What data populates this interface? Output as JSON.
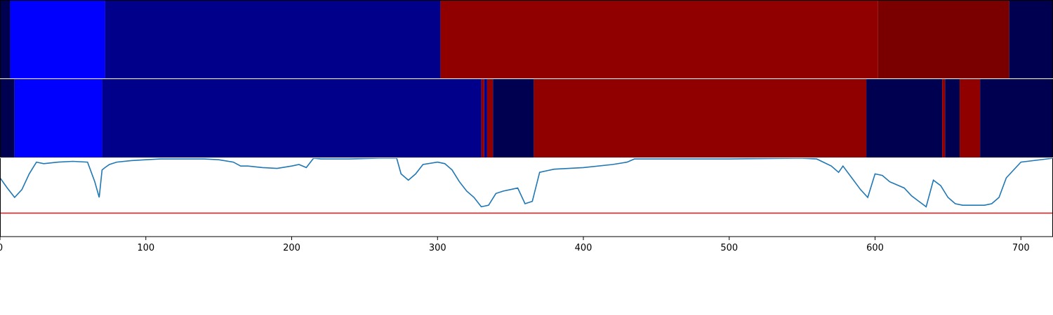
{
  "chart_data": {
    "type": "heatmap",
    "title": "",
    "xlabel": "",
    "ylabel": "",
    "xlim": [
      0,
      722
    ],
    "x_ticks": [
      0,
      100,
      200,
      300,
      400,
      500,
      600,
      700
    ],
    "x_tick_labels": [
      "0",
      "100",
      "200",
      "300",
      "400",
      "500",
      "600",
      "700"
    ],
    "grid": false,
    "legend": "none",
    "colors": {
      "bright_blue": "#0000ff",
      "mid_blue": "#00008b",
      "dark_navy": "#000050",
      "red": "#900000",
      "dark_red": "#7a0000",
      "line": "#1f77b4",
      "threshold": "#d62728"
    },
    "rows": [
      {
        "segments": [
          {
            "start": 0,
            "end": 7,
            "color": "dark_navy"
          },
          {
            "start": 7,
            "end": 72,
            "color": "bright_blue"
          },
          {
            "start": 72,
            "end": 302,
            "color": "mid_blue"
          },
          {
            "start": 302,
            "end": 602,
            "color": "red"
          },
          {
            "start": 602,
            "end": 692,
            "color": "dark_red"
          },
          {
            "start": 692,
            "end": 722,
            "color": "dark_navy"
          }
        ]
      },
      {
        "segments": [
          {
            "start": 0,
            "end": 10,
            "color": "dark_navy"
          },
          {
            "start": 10,
            "end": 70,
            "color": "bright_blue"
          },
          {
            "start": 70,
            "end": 330,
            "color": "mid_blue"
          },
          {
            "start": 330,
            "end": 332,
            "color": "red"
          },
          {
            "start": 332,
            "end": 334,
            "color": "mid_blue"
          },
          {
            "start": 334,
            "end": 338,
            "color": "red"
          },
          {
            "start": 338,
            "end": 366,
            "color": "dark_navy"
          },
          {
            "start": 366,
            "end": 594,
            "color": "red"
          },
          {
            "start": 594,
            "end": 646,
            "color": "dark_navy"
          },
          {
            "start": 646,
            "end": 648,
            "color": "red"
          },
          {
            "start": 648,
            "end": 658,
            "color": "dark_navy"
          },
          {
            "start": 658,
            "end": 672,
            "color": "red"
          },
          {
            "start": 672,
            "end": 722,
            "color": "dark_navy"
          }
        ]
      }
    ],
    "line_panel": {
      "ylim": [
        0,
        1
      ],
      "threshold": 0.3,
      "series": [
        {
          "x": [
            0,
            5,
            10,
            15,
            20,
            25,
            30,
            35,
            40,
            50,
            60,
            65,
            68,
            70,
            72,
            75,
            80,
            90,
            100,
            110,
            120,
            130,
            140,
            150,
            160,
            165,
            170,
            180,
            190,
            200,
            205,
            210,
            215,
            220,
            240,
            260,
            272,
            275,
            280,
            285,
            290,
            300,
            305,
            310,
            315,
            320,
            325,
            330,
            335,
            340,
            345,
            350,
            355,
            360,
            365,
            370,
            375,
            380,
            400,
            420,
            430,
            435,
            450,
            500,
            550,
            560,
            570,
            575,
            578,
            590,
            595,
            600,
            605,
            610,
            620,
            625,
            630,
            635,
            640,
            645,
            650,
            655,
            660,
            665,
            670,
            675,
            680,
            685,
            690,
            700,
            722
          ],
          "y": [
            0.75,
            0.62,
            0.5,
            0.6,
            0.8,
            0.95,
            0.93,
            0.94,
            0.95,
            0.96,
            0.95,
            0.7,
            0.5,
            0.85,
            0.88,
            0.92,
            0.95,
            0.97,
            0.98,
            0.99,
            0.99,
            0.99,
            0.99,
            0.98,
            0.95,
            0.9,
            0.9,
            0.88,
            0.87,
            0.9,
            0.92,
            0.88,
            1.0,
            0.99,
            0.99,
            1.0,
            1.0,
            0.8,
            0.72,
            0.8,
            0.92,
            0.95,
            0.93,
            0.85,
            0.7,
            0.58,
            0.5,
            0.38,
            0.4,
            0.55,
            0.58,
            0.6,
            0.62,
            0.42,
            0.45,
            0.82,
            0.84,
            0.86,
            0.88,
            0.92,
            0.95,
            0.99,
            0.99,
            0.99,
            1.0,
            0.99,
            0.9,
            0.82,
            0.9,
            0.6,
            0.5,
            0.8,
            0.78,
            0.7,
            0.62,
            0.52,
            0.45,
            0.38,
            0.72,
            0.65,
            0.5,
            0.42,
            0.4,
            0.4,
            0.4,
            0.4,
            0.42,
            0.5,
            0.75,
            0.95,
            1.0
          ]
        }
      ]
    }
  }
}
